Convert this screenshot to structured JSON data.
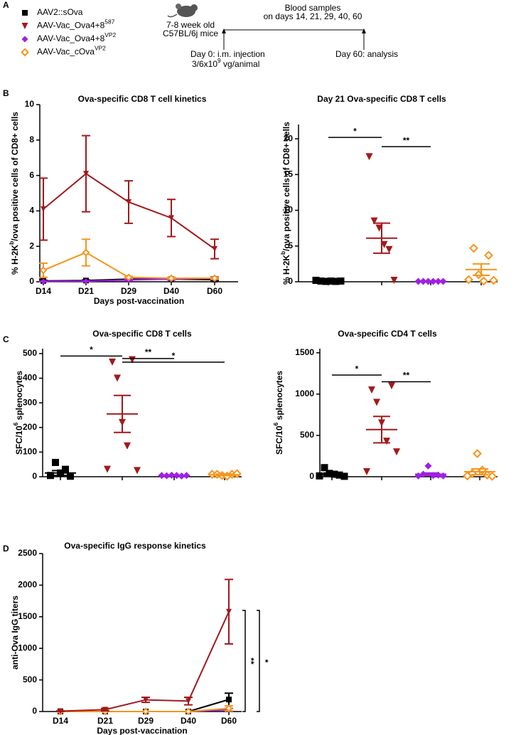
{
  "panel_labels": [
    "A",
    "B",
    "C",
    "D"
  ],
  "legend": [
    {
      "name": [
        "AAV2::sOva"
      ],
      "color": "#000000",
      "marker": "square"
    },
    {
      "name": [
        "AAV-Vac_Ova4+8",
        "587"
      ],
      "color": "#a3191c",
      "marker": "triangle-down"
    },
    {
      "name": [
        "AAV-Vac_Ova4+8",
        "VP2"
      ],
      "color": "#a01fe6",
      "marker": "diamond"
    },
    {
      "name": [
        "AAV-Vac_cOva",
        "VP2"
      ],
      "color": "#f7941d",
      "marker": "diamond-open"
    }
  ],
  "timeline": {
    "mice": [
      "7-8 week old",
      "C57BL/6j mice"
    ],
    "blood": [
      "Blood samples",
      "on days 14, 21, 29, 40, 60"
    ],
    "day0": "Day 0: i.m. injection",
    "dose": [
      "3/6x10",
      "9",
      " vg/animal"
    ],
    "day60": "Day 60: analysis"
  },
  "chart_data": [
    {
      "type": "line",
      "title": "Ova-specific CD8 T cell kinetics",
      "xlabel": "Days post-vaccination",
      "ylabel": [
        "% H-2K",
        "b",
        "/ova positive cells of CD8+ cells"
      ],
      "categories": [
        "D14",
        "D21",
        "D29",
        "D40",
        "D60"
      ],
      "ylim": [
        0,
        10
      ],
      "yticks": [
        0,
        2,
        4,
        6,
        8,
        10
      ],
      "series": [
        {
          "color": "#000000",
          "marker": "square",
          "values": [
            0.05,
            0.07,
            0.15,
            0.15,
            0.12
          ],
          "errors": [
            0.03,
            0.03,
            0.05,
            0.05,
            0.05
          ]
        },
        {
          "color": "#a01fe6",
          "marker": "diamond",
          "values": [
            0.02,
            0.03,
            0.1,
            0.15,
            0.2
          ],
          "errors": [
            0.02,
            0.02,
            0.05,
            0.05,
            0.08
          ]
        },
        {
          "color": "#f7941d",
          "marker": "diamond-open",
          "values": [
            0.65,
            1.65,
            0.25,
            0.2,
            0.2
          ],
          "errors": [
            0.4,
            0.75,
            0.05,
            0.05,
            0.05
          ]
        },
        {
          "color": "#a3191c",
          "marker": "triangle-down",
          "values": [
            4.1,
            6.1,
            4.5,
            3.6,
            1.85
          ],
          "errors": [
            1.75,
            2.15,
            1.2,
            1.05,
            0.55
          ]
        }
      ]
    },
    {
      "type": "dot",
      "title": "Day 21 Ova-specific CD8 T cells",
      "ylabel": [
        "% H-2K",
        "b",
        "/ova positive cells of CD8+ cells"
      ],
      "ylim": [
        0,
        22
      ],
      "yticks": [
        0,
        5,
        10,
        15,
        20
      ],
      "series": [
        {
          "color": "#000000",
          "marker": "square",
          "values": [
            0.2,
            0.1,
            0.05,
            0.1,
            0.05,
            0.1
          ],
          "mean": 0.1,
          "sem": 0.05
        },
        {
          "color": "#a3191c",
          "marker": "triangle-down",
          "values": [
            17.5,
            8.5,
            7.5,
            5.2,
            4.5,
            0.2
          ],
          "mean": 6.1,
          "sem": 2.1
        },
        {
          "color": "#a01fe6",
          "marker": "diamond",
          "values": [
            0.05,
            0.05,
            0.05,
            0.05,
            0.05,
            0.05
          ],
          "mean": 0.05,
          "sem": 0.01
        },
        {
          "color": "#f7941d",
          "marker": "diamond-open",
          "values": [
            0.3,
            4.7,
            1.0,
            0.1,
            3.7,
            0.2
          ],
          "mean": 1.7,
          "sem": 0.8
        }
      ],
      "comparisons": [
        {
          "label": "*",
          "groups": [
            0,
            1
          ],
          "y": 20.2
        },
        {
          "label": "**",
          "groups": [
            1,
            2
          ],
          "y": 18.9
        }
      ]
    },
    {
      "type": "dot",
      "title": "Ova-specific CD8 T cells",
      "ylabel": [
        "SFC/10",
        "6",
        " splenocytes"
      ],
      "ylim": [
        0,
        520
      ],
      "yticks": [
        0,
        100,
        200,
        300,
        400,
        500
      ],
      "series": [
        {
          "color": "#000000",
          "marker": "square",
          "values": [
            5,
            58,
            15,
            30,
            2
          ],
          "mean": 15,
          "sem": 10
        },
        {
          "color": "#a3191c",
          "marker": "triangle-down",
          "values": [
            30,
            465,
            400,
            220,
            125,
            475,
            25
          ],
          "mean": 255,
          "sem": 75
        },
        {
          "color": "#a01fe6",
          "marker": "diamond",
          "values": [
            5,
            4,
            6,
            5,
            3,
            5
          ],
          "mean": 5,
          "sem": 1
        },
        {
          "color": "#f7941d",
          "marker": "diamond-open",
          "values": [
            10,
            10,
            5,
            2,
            10,
            12
          ],
          "mean": 8,
          "sem": 3
        }
      ],
      "comparisons": [
        {
          "label": "*",
          "groups": [
            0,
            1
          ],
          "y": 490
        },
        {
          "label": "**",
          "groups": [
            1,
            2
          ],
          "y": 480
        },
        {
          "label": "*",
          "groups": [
            1,
            3
          ],
          "y": 465
        }
      ]
    },
    {
      "type": "dot",
      "title": "Ova-specific CD4 T cells",
      "ylabel": [
        "SFC/10",
        "6",
        " splenocytes"
      ],
      "ylim": [
        0,
        1550
      ],
      "yticks": [
        0,
        500,
        1000,
        1500
      ],
      "series": [
        {
          "color": "#000000",
          "marker": "square",
          "values": [
            10,
            110,
            40,
            30,
            20,
            5
          ],
          "mean": 30,
          "sem": 15
        },
        {
          "color": "#a3191c",
          "marker": "triangle-down",
          "values": [
            60,
            1050,
            900,
            650,
            430,
            1100,
            300
          ],
          "mean": 570,
          "sem": 160
        },
        {
          "color": "#a01fe6",
          "marker": "diamond",
          "values": [
            10,
            30,
            130,
            15,
            20,
            10
          ],
          "mean": 30,
          "sem": 15
        },
        {
          "color": "#f7941d",
          "marker": "diamond-open",
          "values": [
            10,
            40,
            280,
            80,
            20,
            5
          ],
          "mean": 60,
          "sem": 35
        }
      ],
      "comparisons": [
        {
          "label": "*",
          "groups": [
            0,
            1
          ],
          "y": 1230
        },
        {
          "label": "**",
          "groups": [
            1,
            2
          ],
          "y": 1150
        }
      ]
    },
    {
      "type": "line",
      "title": "Ova-specific IgG response kinetics",
      "xlabel": "Days post-vaccination",
      "ylabel": [
        "anti-Ova IgG titers"
      ],
      "categories": [
        "D14",
        "D21",
        "D29",
        "D40",
        "D60"
      ],
      "ylim": [
        0,
        2500
      ],
      "yticks": [
        0,
        500,
        1000,
        1500,
        2000,
        2500
      ],
      "series": [
        {
          "color": "#000000",
          "marker": "square",
          "values": [
            0,
            0,
            0,
            0,
            190
          ],
          "errors": [
            0,
            0,
            0,
            0,
            100
          ]
        },
        {
          "color": "#a01fe6",
          "marker": "diamond",
          "values": [
            0,
            0,
            0,
            0,
            30
          ],
          "errors": [
            0,
            0,
            0,
            0,
            20
          ]
        },
        {
          "color": "#f7941d",
          "marker": "diamond-open",
          "values": [
            0,
            0,
            0,
            0,
            50
          ],
          "errors": [
            0,
            0,
            0,
            0,
            40
          ]
        },
        {
          "color": "#a3191c",
          "marker": "triangle-down",
          "values": [
            5,
            30,
            185,
            165,
            1580
          ],
          "errors": [
            5,
            20,
            40,
            60,
            510
          ]
        }
      ],
      "brackets": [
        {
          "label": "**",
          "range": [
            1600,
            0
          ]
        },
        {
          "label": "*",
          "range": [
            1600,
            0
          ]
        }
      ]
    }
  ]
}
